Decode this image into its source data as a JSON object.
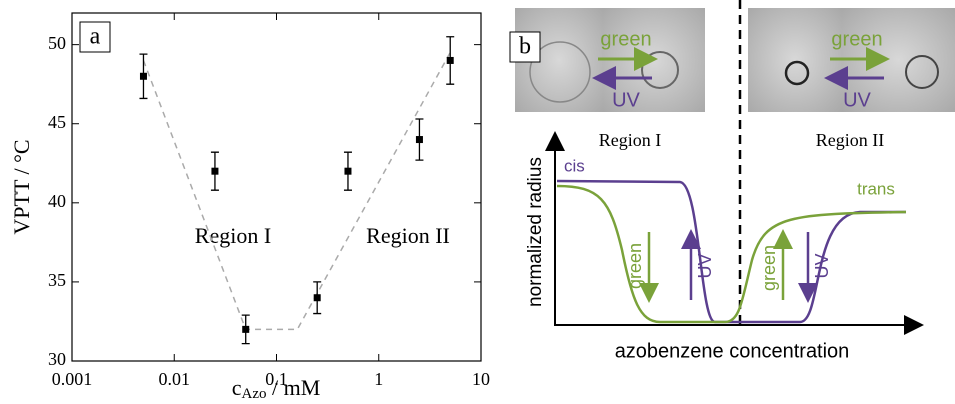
{
  "chart_data": {
    "type": "scatter",
    "label": "a",
    "y_label": "VPTT / °C",
    "x_label": "c",
    "x_label_sub": "Azo",
    "x_label_unit": " / mM",
    "annotations": [
      "Region I",
      "Region II"
    ],
    "x": [
      0.005,
      0.025,
      0.05,
      0.25,
      0.5,
      2.5,
      5
    ],
    "series": [
      {
        "color": "#000000",
        "values": [
          48,
          42,
          32,
          34,
          42,
          44,
          49
        ],
        "errors": [
          1.4,
          1.2,
          0.9,
          1.0,
          1.2,
          1.3,
          1.5
        ]
      }
    ],
    "guide_line": {
      "color": "#aaaaaa",
      "x": [
        0.005,
        0.05,
        0.16,
        5
      ],
      "values": [
        49,
        32,
        32,
        49.5
      ]
    },
    "xscale": "log",
    "xlim": [
      0.001,
      10
    ],
    "xticks": [
      0.001,
      0.01,
      0.1,
      1,
      10
    ],
    "ylim": [
      30,
      52
    ],
    "yticks": [
      30,
      35,
      40,
      45,
      50
    ]
  },
  "diagram": {
    "label": "b",
    "photo_arrows": [
      {
        "top": "green",
        "bottom": "UV"
      },
      {
        "top": "green",
        "bottom": "UV"
      }
    ],
    "regions": [
      "Region I",
      "Region II"
    ],
    "curves": [
      "cis",
      "trans"
    ],
    "y_label": "normalized radius",
    "x_label": "azobenzene concentration",
    "switch_arrows": [
      {
        "down": "green",
        "up": "UV"
      },
      {
        "up": "green",
        "down": "UV"
      }
    ]
  }
}
